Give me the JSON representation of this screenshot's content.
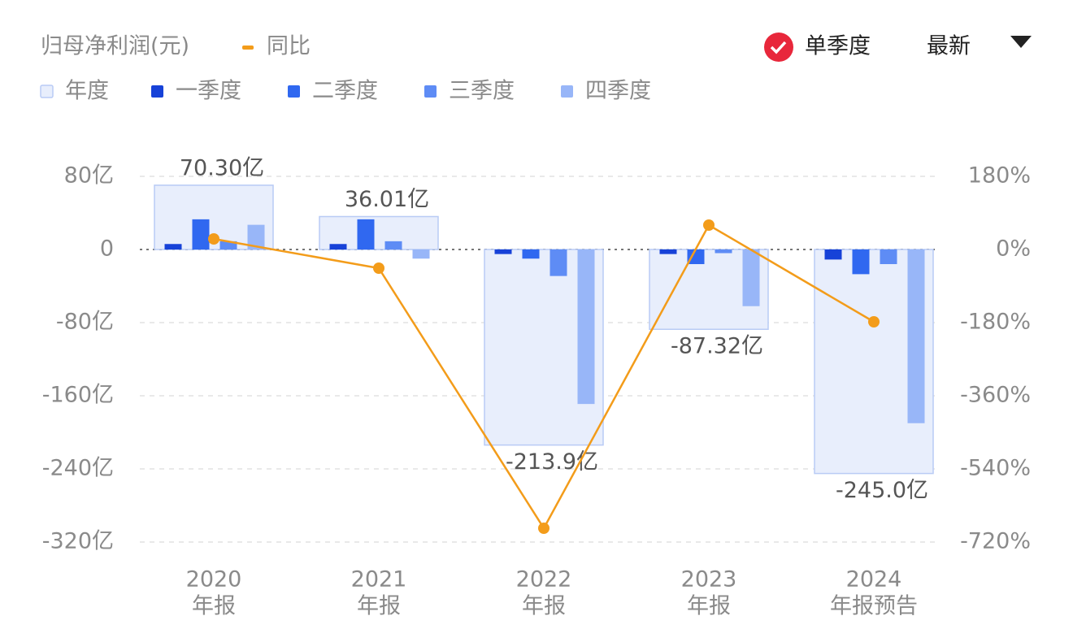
{
  "chart_data": {
    "type": "bar",
    "title": "归母净利润(元)",
    "categories": [
      "2020",
      "2021",
      "2022",
      "2023",
      "2024"
    ],
    "category_sublabels": [
      "年报",
      "年报",
      "年报",
      "年报",
      "年报预告"
    ],
    "series": [
      {
        "name": "年度",
        "color": "#e8eefc",
        "border": "#b9cbf5",
        "type": "bar",
        "values": [
          70.3,
          36.01,
          -213.9,
          -87.32,
          -245.0
        ],
        "value_labels": [
          "70.30亿",
          "36.01亿",
          "-213.9亿",
          "-87.32亿",
          "-245.0亿"
        ]
      },
      {
        "name": "一季度",
        "color": "#1742d8",
        "type": "bar",
        "values": [
          6,
          6,
          -5,
          -5,
          -11
        ]
      },
      {
        "name": "二季度",
        "color": "#3068f0",
        "type": "bar",
        "values": [
          33,
          33,
          -10,
          -16,
          -27
        ]
      },
      {
        "name": "三季度",
        "color": "#5e8cf5",
        "type": "bar",
        "values": [
          9,
          9,
          -29,
          -4,
          -16
        ]
      },
      {
        "name": "四季度",
        "color": "#98b6f8",
        "type": "bar",
        "values": [
          27,
          -10,
          -169,
          -62,
          -190
        ]
      },
      {
        "name": "同比",
        "color": "#f39c1a",
        "type": "line",
        "axis": "y2",
        "values": [
          26,
          -46,
          -686,
          60,
          -178
        ]
      }
    ],
    "ylim": [
      -320,
      80
    ],
    "yticks": [
      {
        "value": 80,
        "label": "80亿"
      },
      0,
      {
        "value": -80,
        "label": "-80亿"
      },
      {
        "value": -160,
        "label": "-160亿"
      },
      {
        "value": -240,
        "label": "-240亿"
      },
      {
        "value": -320,
        "label": "-320亿"
      }
    ],
    "y2lim": [
      -720,
      180
    ],
    "y2ticks": [
      {
        "value": 180,
        "label": "180%"
      },
      {
        "value": 0,
        "label": "0%"
      },
      {
        "value": -180,
        "label": "-180%"
      },
      {
        "value": -360,
        "label": "-360%"
      },
      {
        "value": -540,
        "label": "-540%"
      },
      {
        "value": -720,
        "label": "-720%"
      }
    ],
    "grid": true
  },
  "controls": {
    "single_quarter": "单季度",
    "latest": "最新"
  }
}
